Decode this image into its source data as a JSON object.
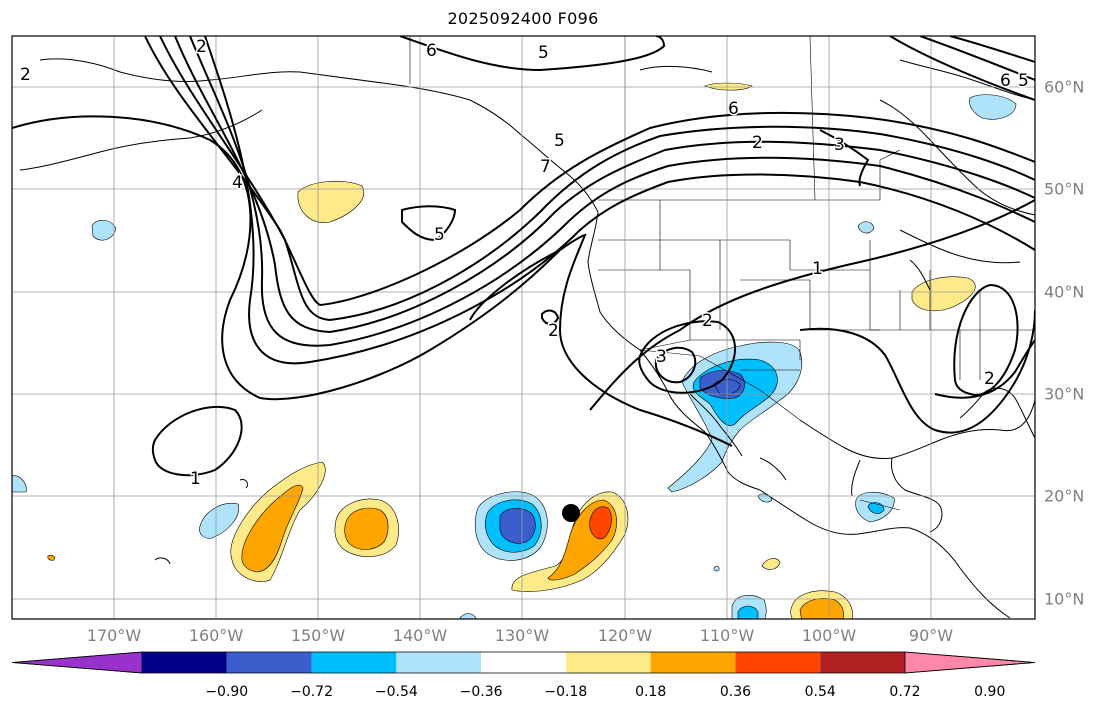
{
  "title": "2025092400 F096",
  "lon_labels": [
    "170°W",
    "160°W",
    "150°W",
    "140°W",
    "130°W",
    "120°W",
    "110°W",
    "100°W",
    "90°W"
  ],
  "lat_labels": [
    "60°N",
    "50°N",
    "40°N",
    "30°N",
    "20°N",
    "10°N"
  ],
  "contour_labels": [
    "6",
    "5",
    "6",
    "6",
    "5",
    "2",
    "3",
    "5",
    "4",
    "5",
    "7",
    "2",
    "1",
    "2",
    "2",
    "3",
    "2",
    "1",
    "2"
  ],
  "colorbar": {
    "colors": [
      "#9932cc",
      "#00008b",
      "#3a5fcd",
      "#00bfff",
      "#aee3fb",
      "#ffffff",
      "#ffea8a",
      "#ffa500",
      "#ff4500",
      "#b22222",
      "#ff88aa"
    ],
    "labels": [
      "−0.90",
      "−0.72",
      "−0.54",
      "−0.36",
      "−0.18",
      "0.18",
      "0.36",
      "0.54",
      "0.72",
      "0.90"
    ]
  }
}
